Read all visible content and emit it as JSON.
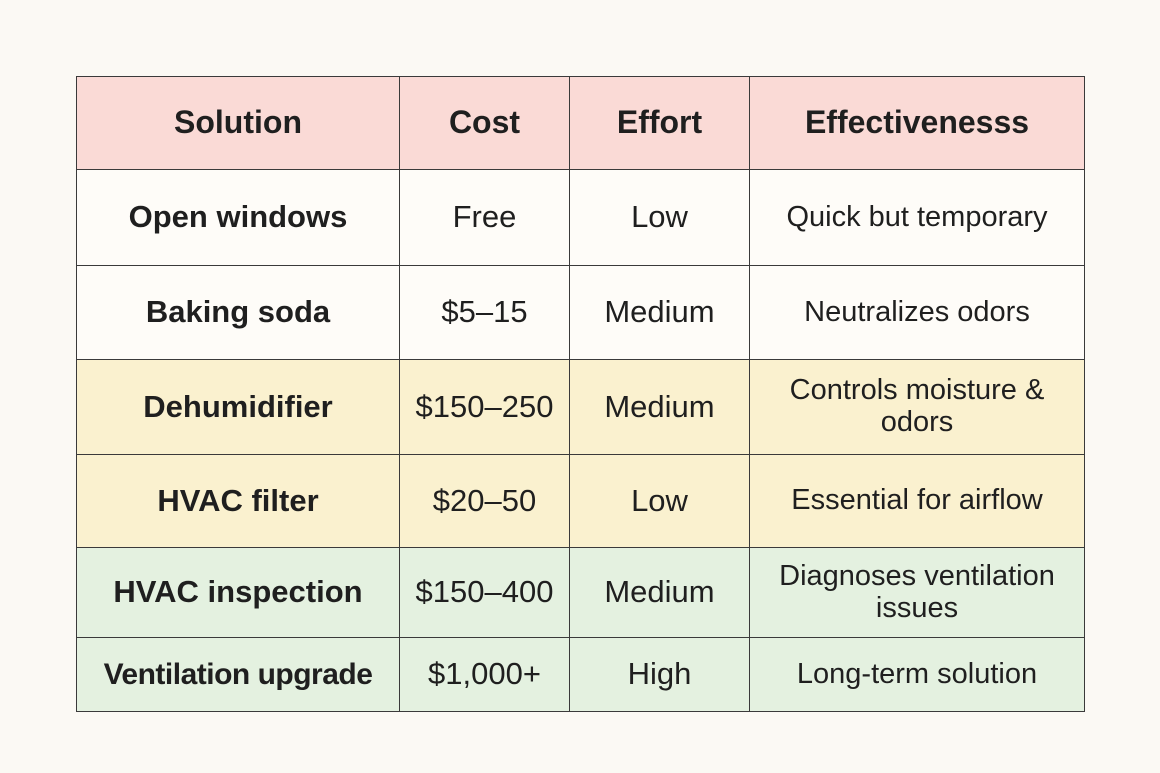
{
  "table": {
    "headers": [
      "Solution",
      "Cost",
      "Effort",
      "Effectivenesss"
    ],
    "rows": [
      {
        "solution": "Open windows",
        "cost": "Free",
        "effort": "Low",
        "effectiveness": "Quick but temporary",
        "tint": "white"
      },
      {
        "solution": "Baking soda",
        "cost": "$5–15",
        "effort": "Medium",
        "effectiveness": "Neutralizes odors",
        "tint": "white"
      },
      {
        "solution": "Dehumidifier",
        "cost": "$150–250",
        "effort": "Medium",
        "effectiveness": "Controls moisture & odors",
        "tint": "yellow"
      },
      {
        "solution": "HVAC filter",
        "cost": "$20–50",
        "effort": "Low",
        "effectiveness": "Essential for airflow",
        "tint": "yellow"
      },
      {
        "solution": "HVAC inspection",
        "cost": "$150–400",
        "effort": "Medium",
        "effectiveness": "Diagnoses ventilation issues",
        "tint": "green"
      },
      {
        "solution": "Ventilation upgrade",
        "cost": "$1,000+",
        "effort": "High",
        "effectiveness": "Long-term solution",
        "tint": "green"
      }
    ]
  },
  "colors": {
    "header_bg": "#fadad6",
    "white_row_bg": "#fefcf8",
    "yellow_row_bg": "#faf1cf",
    "green_row_bg": "#e4f1e0",
    "border": "#3a3a3a"
  }
}
